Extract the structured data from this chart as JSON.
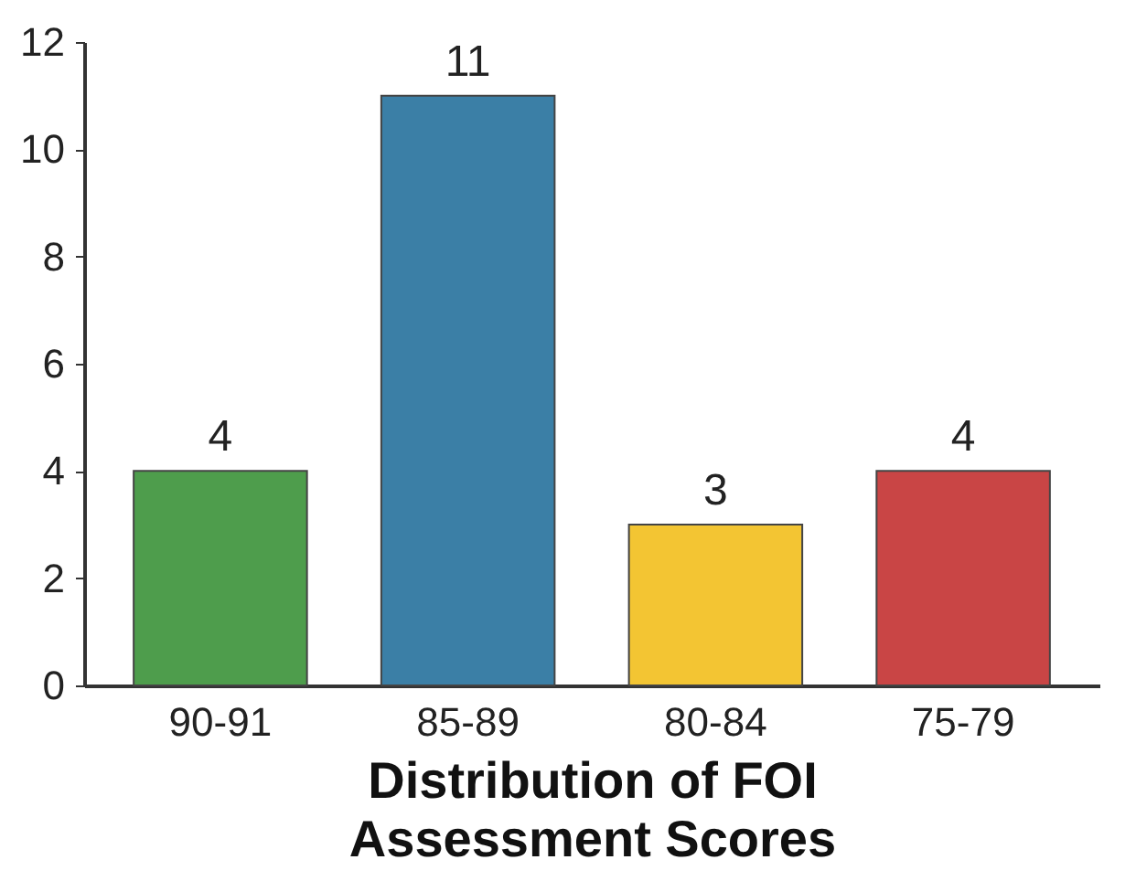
{
  "chart_data": {
    "type": "bar",
    "xlabel": "Distribution of FOI Assessment Scores",
    "categories": [
      "90-91",
      "85-89",
      "80-84",
      "75-79"
    ],
    "values": [
      4,
      11,
      3,
      4
    ],
    "colors": [
      "#4e9d4c",
      "#3b7fa6",
      "#f3c533",
      "#c94545"
    ],
    "ylim": [
      0,
      12
    ],
    "yticks": [
      0,
      2,
      4,
      6,
      8,
      10,
      12
    ],
    "grid": false,
    "data_labels": true
  }
}
